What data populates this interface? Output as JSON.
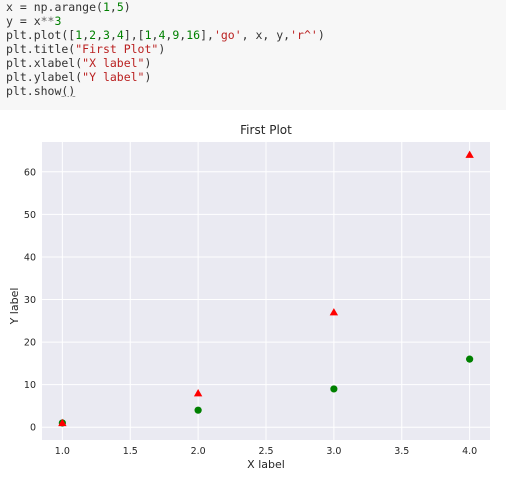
{
  "code": {
    "lines": [
      [
        {
          "t": "x = np.arange(",
          "c": ""
        },
        {
          "t": "1",
          "c": "num"
        },
        {
          "t": ",",
          "c": ""
        },
        {
          "t": "5",
          "c": "num"
        },
        {
          "t": ")",
          "c": ""
        }
      ],
      [
        {
          "t": "y = x",
          "c": ""
        },
        {
          "t": "**",
          "c": "op"
        },
        {
          "t": "3",
          "c": "num"
        }
      ],
      [
        {
          "t": "plt.plot([",
          "c": ""
        },
        {
          "t": "1",
          "c": "num"
        },
        {
          "t": ",",
          "c": ""
        },
        {
          "t": "2",
          "c": "num"
        },
        {
          "t": ",",
          "c": ""
        },
        {
          "t": "3",
          "c": "num"
        },
        {
          "t": ",",
          "c": ""
        },
        {
          "t": "4",
          "c": "num"
        },
        {
          "t": "],[",
          "c": ""
        },
        {
          "t": "1",
          "c": "num"
        },
        {
          "t": ",",
          "c": ""
        },
        {
          "t": "4",
          "c": "num"
        },
        {
          "t": ",",
          "c": ""
        },
        {
          "t": "9",
          "c": "num"
        },
        {
          "t": ",",
          "c": ""
        },
        {
          "t": "16",
          "c": "num"
        },
        {
          "t": "],",
          "c": ""
        },
        {
          "t": "'go'",
          "c": "str"
        },
        {
          "t": ", x, y,",
          "c": ""
        },
        {
          "t": "'r^'",
          "c": "str"
        },
        {
          "t": ")",
          "c": ""
        }
      ],
      [
        {
          "t": "plt.title(",
          "c": ""
        },
        {
          "t": "\"First Plot\"",
          "c": "str"
        },
        {
          "t": ")",
          "c": ""
        }
      ],
      [
        {
          "t": "plt.xlabel(",
          "c": ""
        },
        {
          "t": "\"X label\"",
          "c": "str"
        },
        {
          "t": ")",
          "c": ""
        }
      ],
      [
        {
          "t": "plt.ylabel(",
          "c": ""
        },
        {
          "t": "\"Y label\"",
          "c": "str"
        },
        {
          "t": ")",
          "c": ""
        }
      ],
      [
        {
          "t": "plt.show",
          "c": ""
        },
        {
          "t": "()",
          "c": "ul"
        }
      ]
    ]
  },
  "chart_data": {
    "type": "scatter",
    "title": "First Plot",
    "xlabel": "X label",
    "ylabel": "Y label",
    "xlim": [
      0.85,
      4.15
    ],
    "ylim": [
      -3,
      67
    ],
    "grid": true,
    "xticks": [
      1.0,
      1.5,
      2.0,
      2.5,
      3.0,
      3.5,
      4.0
    ],
    "xtick_labels": [
      "1.0",
      "1.5",
      "2.0",
      "2.5",
      "3.0",
      "3.5",
      "4.0"
    ],
    "yticks": [
      0,
      10,
      20,
      30,
      40,
      50,
      60
    ],
    "ytick_labels": [
      "0",
      "10",
      "20",
      "30",
      "40",
      "50",
      "60"
    ],
    "series": [
      {
        "marker": "circle",
        "color": "#008000",
        "x": [
          1,
          2,
          3,
          4
        ],
        "y": [
          1,
          4,
          9,
          16
        ]
      },
      {
        "marker": "triangle",
        "color": "#ff0000",
        "x": [
          1,
          2,
          3,
          4
        ],
        "y": [
          1,
          8,
          27,
          64
        ]
      }
    ],
    "colors": {
      "plot_bg": "#eaeaf2",
      "grid": "#ffffff",
      "text": "#262626"
    }
  }
}
